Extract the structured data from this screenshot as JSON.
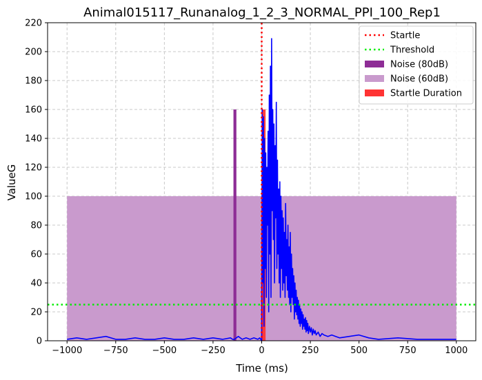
{
  "chart_data": {
    "type": "line",
    "title": "Animal015117_Runanalog_1_2_3_NORMAL_PPI_100_Rep1",
    "xlabel": "Time (ms)",
    "ylabel": "ValueG",
    "xlim": [
      -1100,
      1100
    ],
    "ylim": [
      0,
      220
    ],
    "xticks": [
      -1000,
      -750,
      -500,
      -250,
      0,
      250,
      500,
      750,
      1000
    ],
    "xtick_labels": [
      "−1000",
      "−750",
      "−500",
      "−250",
      "0",
      "250",
      "500",
      "750",
      "1000"
    ],
    "yticks": [
      0,
      20,
      40,
      60,
      80,
      100,
      120,
      140,
      160,
      180,
      200,
      220
    ],
    "ytick_labels": [
      "0",
      "20",
      "40",
      "60",
      "80",
      "100",
      "120",
      "140",
      "160",
      "180",
      "200",
      "220"
    ],
    "grid": true,
    "legend_position": "top-right",
    "colors": {
      "signal": "#0000ff",
      "startle": "#ff0000",
      "threshold": "#00ee00",
      "noise80": "#8e2d96",
      "noise60": "#c99acd",
      "startle_duration": "#ff3333",
      "grid": "#c8c8c8"
    },
    "legend": [
      {
        "label": "Startle",
        "style": "dotted",
        "color": "#ff0000"
      },
      {
        "label": "Threshold",
        "style": "dotted",
        "color": "#00ee00"
      },
      {
        "label": "Noise (80dB)",
        "style": "patch",
        "color": "#8e2d96"
      },
      {
        "label": "Noise (60dB)",
        "style": "patch",
        "color": "#c99acd"
      },
      {
        "label": "Startle Duration",
        "style": "patch",
        "color": "#ff3333"
      }
    ],
    "startle_line_x": 0,
    "threshold_y": 25,
    "noise_60db": {
      "x_start": -1000,
      "x_end": 1000,
      "height": 100
    },
    "noise_80db": {
      "x_start": -145,
      "x_end": -130,
      "height": 160
    },
    "startle_duration": {
      "x_start": 0,
      "x_end": 20,
      "height": 160
    },
    "signal": {
      "name": "ValueG",
      "x": [
        -1000,
        -950,
        -900,
        -850,
        -800,
        -750,
        -700,
        -650,
        -600,
        -550,
        -500,
        -450,
        -400,
        -350,
        -300,
        -250,
        -200,
        -160,
        -150,
        -140,
        -120,
        -100,
        -80,
        -60,
        -40,
        -20,
        -10,
        -5,
        0,
        3,
        6,
        9,
        12,
        15,
        18,
        21,
        24,
        27,
        30,
        33,
        36,
        39,
        42,
        45,
        48,
        51,
        54,
        57,
        60,
        63,
        66,
        69,
        72,
        75,
        78,
        81,
        84,
        87,
        90,
        93,
        96,
        99,
        102,
        105,
        108,
        111,
        114,
        117,
        120,
        123,
        126,
        129,
        132,
        135,
        138,
        141,
        144,
        147,
        150,
        153,
        156,
        159,
        162,
        165,
        168,
        171,
        174,
        177,
        180,
        183,
        186,
        189,
        192,
        195,
        198,
        201,
        204,
        207,
        210,
        213,
        216,
        219,
        222,
        225,
        228,
        231,
        234,
        237,
        240,
        245,
        250,
        255,
        260,
        265,
        270,
        275,
        280,
        290,
        300,
        310,
        320,
        340,
        360,
        380,
        400,
        450,
        500,
        550,
        600,
        700,
        800,
        900,
        1000
      ],
      "values": [
        1,
        2,
        1,
        2,
        3,
        1,
        1,
        2,
        1,
        1,
        2,
        1,
        1,
        2,
        1,
        2,
        1,
        2,
        1,
        1,
        3,
        1,
        2,
        1,
        2,
        1,
        2,
        1,
        0,
        160,
        40,
        155,
        10,
        140,
        50,
        130,
        30,
        120,
        80,
        145,
        20,
        170,
        60,
        190,
        30,
        209,
        90,
        160,
        70,
        150,
        40,
        135,
        85,
        165,
        50,
        125,
        60,
        105,
        40,
        110,
        30,
        100,
        50,
        90,
        35,
        85,
        40,
        75,
        30,
        95,
        45,
        70,
        35,
        80,
        30,
        65,
        25,
        75,
        20,
        60,
        30,
        50,
        25,
        45,
        15,
        40,
        20,
        35,
        18,
        30,
        15,
        28,
        12,
        25,
        10,
        22,
        12,
        20,
        8,
        18,
        10,
        15,
        8,
        16,
        6,
        14,
        7,
        12,
        5,
        10,
        6,
        9,
        4,
        8,
        5,
        7,
        4,
        6,
        3,
        5,
        4,
        3,
        4,
        3,
        2,
        3,
        4,
        2,
        1,
        2,
        1,
        1,
        1
      ]
    }
  }
}
